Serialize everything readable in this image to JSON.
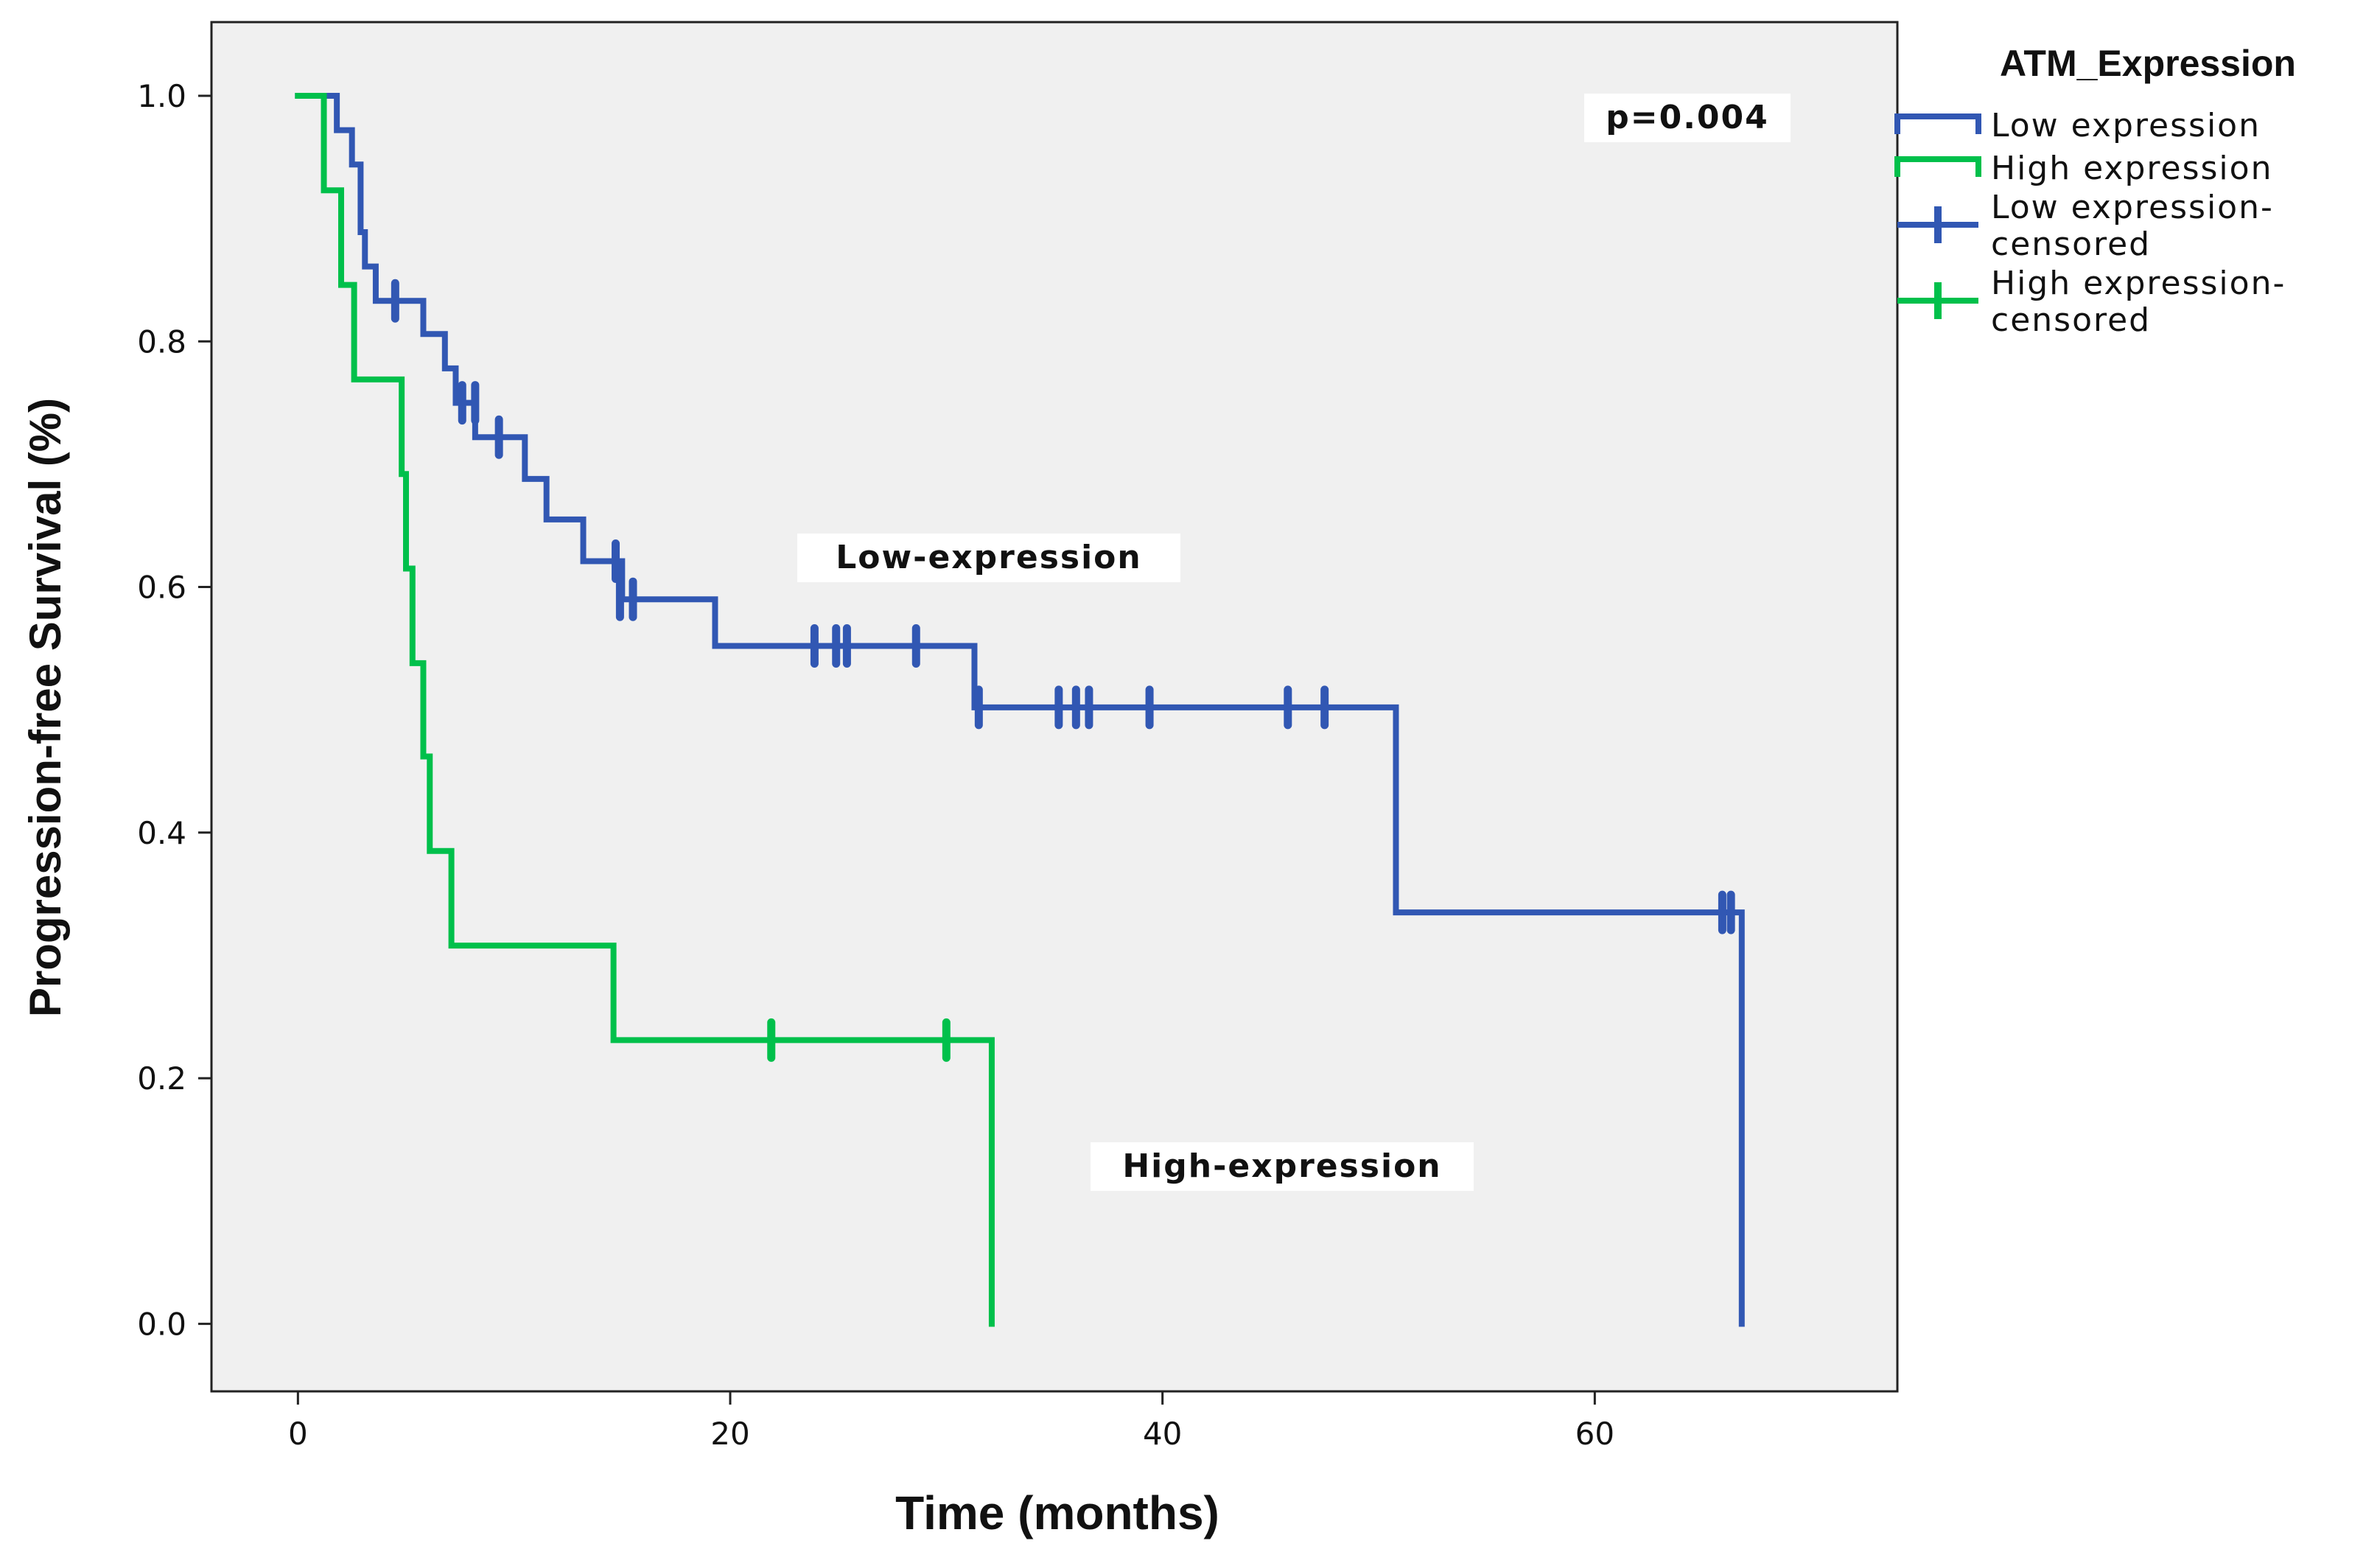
{
  "chart_data": {
    "type": "line",
    "subtype": "kaplan-meier",
    "xlabel": "Time (months)",
    "ylabel": "Progression-free Survival (%)",
    "xlim": [
      -4,
      74
    ],
    "ylim": [
      -0.055,
      1.06
    ],
    "x_ticks": [
      0,
      20,
      40,
      60
    ],
    "y_ticks": [
      0.0,
      0.2,
      0.4,
      0.6,
      0.8,
      1.0
    ],
    "y_tick_labels": [
      "0.0",
      "0.2",
      "0.4",
      "0.6",
      "0.8",
      "1.0"
    ],
    "x_tick_labels": [
      "0",
      "20",
      "40",
      "60"
    ],
    "grid": false,
    "legend": {
      "title": "ATM_Expression",
      "position": "right",
      "entries": [
        {
          "label": "Low expression",
          "series": "low",
          "kind": "line"
        },
        {
          "label": "High expression",
          "series": "high",
          "kind": "line"
        },
        {
          "label_line1": "Low expression-",
          "label_line2": "censored",
          "series": "low",
          "kind": "censored"
        },
        {
          "label_line1": "High expression-",
          "label_line2": "censored",
          "series": "high",
          "kind": "censored"
        }
      ]
    },
    "annotations": {
      "p_value": "p=0.004",
      "low_label": "Low-expression",
      "high_label": "High-expression"
    },
    "annotation_positions": {
      "p_value": {
        "x": 60,
        "y": 0.965
      },
      "low_label": {
        "x": 32,
        "y": 0.615
      },
      "high_label": {
        "x": 45.5,
        "y": 0.12
      }
    },
    "series": [
      {
        "name": "Low expression",
        "key": "low",
        "color": "#3157b3",
        "steps": [
          [
            0,
            1.0
          ],
          [
            1.8,
            0.972
          ],
          [
            2.5,
            0.944
          ],
          [
            2.9,
            0.889
          ],
          [
            3.1,
            0.861
          ],
          [
            3.6,
            0.833
          ],
          [
            5.0,
            0.833
          ],
          [
            5.8,
            0.806
          ],
          [
            6.8,
            0.778
          ],
          [
            7.3,
            0.75
          ],
          [
            8.2,
            0.722
          ],
          [
            9.7,
            0.722
          ],
          [
            10.5,
            0.688
          ],
          [
            11.5,
            0.655
          ],
          [
            13.2,
            0.621
          ],
          [
            14.8,
            0.621
          ],
          [
            15.0,
            0.59
          ],
          [
            19.3,
            0.552
          ],
          [
            31.3,
            0.502
          ],
          [
            50.8,
            0.335
          ],
          [
            66.8,
            0.0
          ]
        ],
        "end_x": 66.8,
        "censored": [
          [
            4.5,
            0.833
          ],
          [
            7.6,
            0.75
          ],
          [
            8.2,
            0.75
          ],
          [
            9.3,
            0.722
          ],
          [
            14.7,
            0.621
          ],
          [
            14.9,
            0.59
          ],
          [
            15.5,
            0.59
          ],
          [
            23.9,
            0.552
          ],
          [
            24.9,
            0.552
          ],
          [
            25.4,
            0.552
          ],
          [
            28.6,
            0.552
          ],
          [
            31.5,
            0.502
          ],
          [
            35.2,
            0.502
          ],
          [
            36.0,
            0.502
          ],
          [
            36.6,
            0.502
          ],
          [
            39.4,
            0.502
          ],
          [
            45.8,
            0.502
          ],
          [
            47.5,
            0.502
          ],
          [
            65.9,
            0.335
          ],
          [
            66.3,
            0.335
          ]
        ]
      },
      {
        "name": "High expression",
        "key": "high",
        "color": "#00c04b",
        "steps": [
          [
            0,
            1.0
          ],
          [
            1.2,
            0.923
          ],
          [
            2.0,
            0.846
          ],
          [
            2.6,
            0.769
          ],
          [
            4.8,
            0.692
          ],
          [
            5.0,
            0.615
          ],
          [
            5.3,
            0.538
          ],
          [
            5.8,
            0.462
          ],
          [
            6.1,
            0.385
          ],
          [
            7.1,
            0.308
          ],
          [
            14.6,
            0.231
          ],
          [
            32.1,
            0.0
          ]
        ],
        "end_x": 32.1,
        "censored": [
          [
            21.9,
            0.231
          ],
          [
            30.0,
            0.231
          ]
        ]
      }
    ]
  }
}
